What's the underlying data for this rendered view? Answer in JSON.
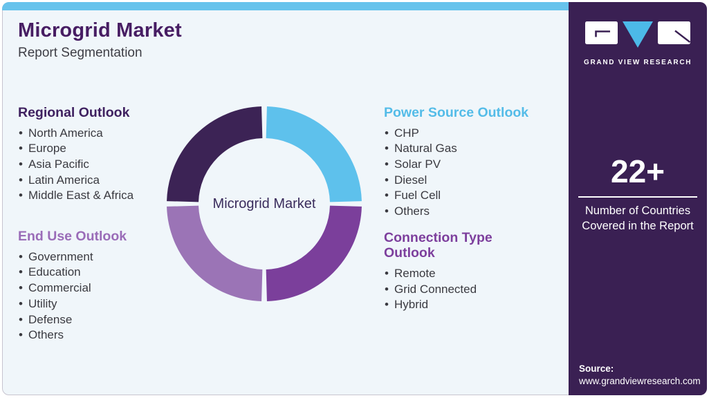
{
  "header": {
    "title": "Microgrid Market",
    "subtitle": "Report Segmentation"
  },
  "brand": {
    "wordmark": "GRAND VIEW RESEARCH"
  },
  "sections": [
    {
      "id": "regional-outlook",
      "title": "Regional Outlook",
      "color": "#3f2160",
      "items": [
        "North America",
        "Europe",
        "Asia Pacific",
        "Latin America",
        "Middle East & Africa"
      ]
    },
    {
      "id": "end-use-outlook",
      "title": "End Use Outlook",
      "color": "#9a6cb8",
      "items": [
        "Government",
        "Education",
        "Commercial",
        "Utility",
        "Defense",
        "Others"
      ]
    },
    {
      "id": "power-source-outlook",
      "title": "Power Source Outlook",
      "color": "#54bce8",
      "items": [
        "CHP",
        "Natural Gas",
        "Solar PV",
        "Diesel",
        "Fuel Cell",
        "Others"
      ]
    },
    {
      "id": "connection-type-outlook",
      "title": "Connection Type Outlook",
      "color": "#7d3f9d",
      "items": [
        "Remote",
        "Grid Connected",
        "Hybrid"
      ]
    }
  ],
  "chart_data": {
    "type": "pie",
    "donut": true,
    "center_label": "Microgrid Market",
    "legend_position": "none",
    "segments": [
      {
        "name": "Power Source Outlook",
        "value": 25,
        "color": "#5ec1ec"
      },
      {
        "name": "Connection Type Outlook",
        "value": 25,
        "color": "#7b3f9b"
      },
      {
        "name": "End Use Outlook",
        "value": 25,
        "color": "#9b74b6"
      },
      {
        "name": "Regional Outlook",
        "value": 25,
        "color": "#3c2355"
      }
    ]
  },
  "stat": {
    "value": "22+",
    "caption": "Number of Countries Covered in the Report"
  },
  "source": {
    "label": "Source:",
    "url": "www.grandviewresearch.com"
  },
  "colors": {
    "accent_blue": "#67c3ec",
    "sidebar_purple": "#3a2053",
    "title_purple": "#471d63",
    "card_bg": "#f0f6fa",
    "body_text": "#3a3a40"
  }
}
